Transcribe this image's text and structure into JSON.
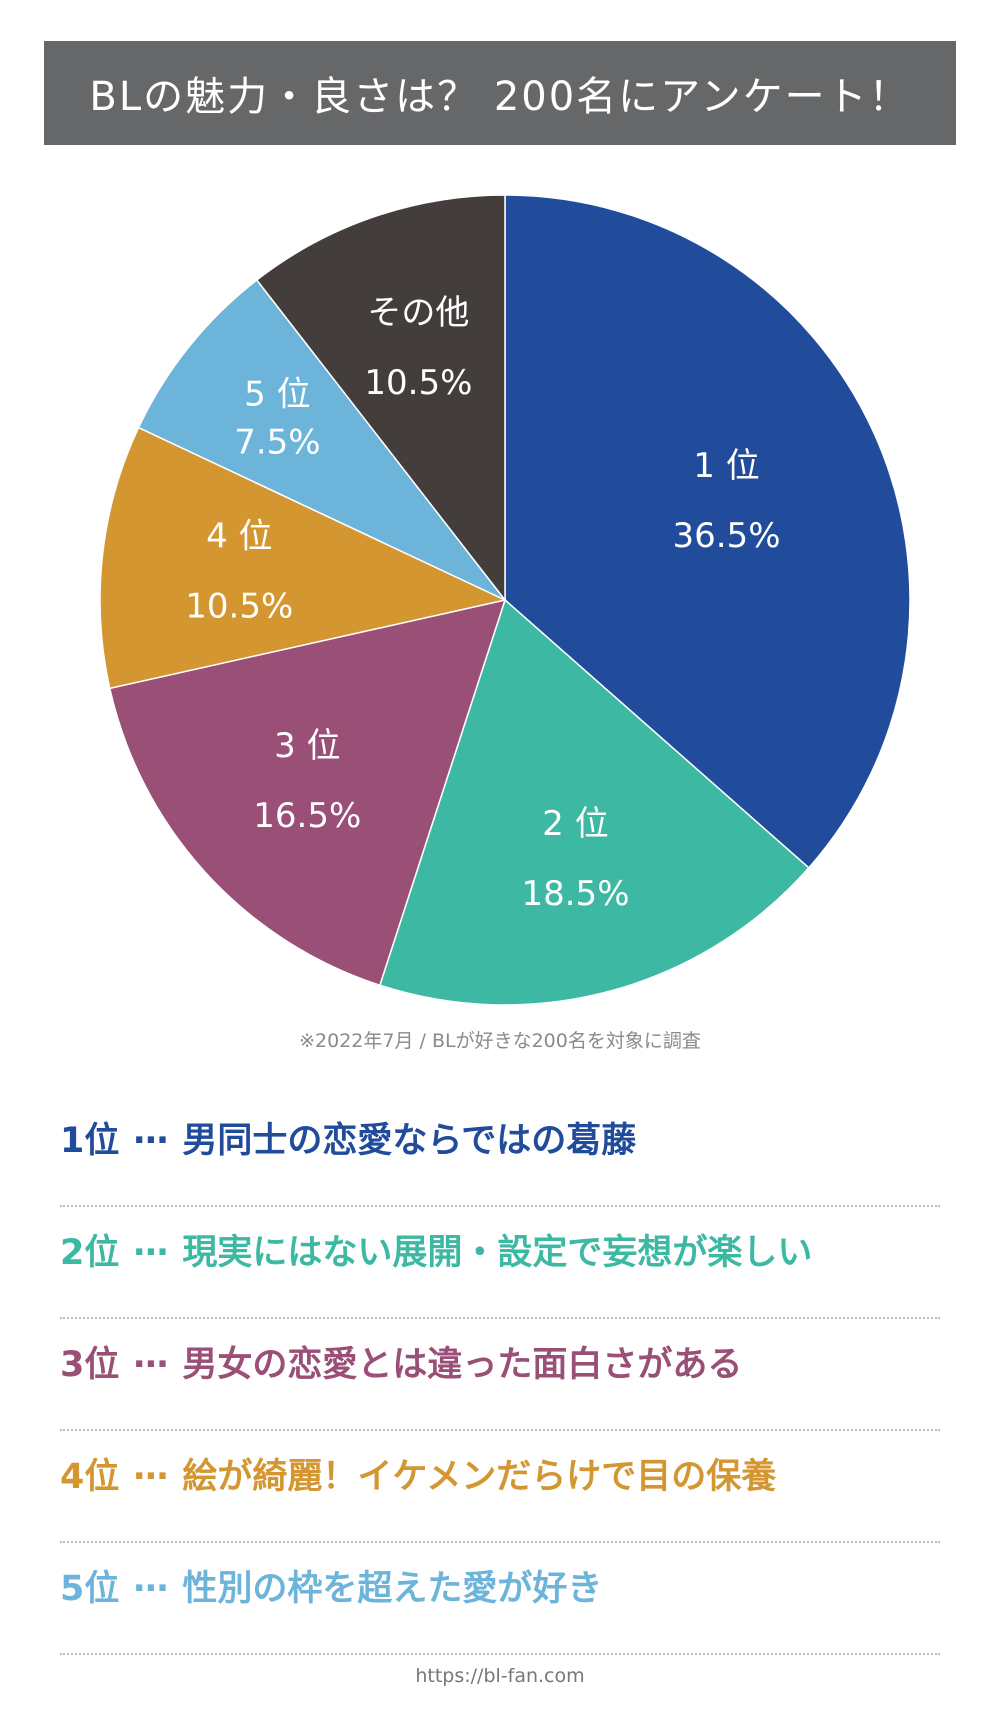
{
  "title": "BLの魅力・良さは？ 200名にアンケート！",
  "chart_data": {
    "type": "pie",
    "title": "BLの魅力・良さは？ 200名にアンケート！",
    "slices": [
      {
        "label": "1 位",
        "value": 36.5,
        "value_label": "36.5%",
        "color": "#214B9B"
      },
      {
        "label": "2 位",
        "value": 18.5,
        "value_label": "18.5%",
        "color": "#3DB8A3"
      },
      {
        "label": "3 位",
        "value": 16.5,
        "value_label": "16.5%",
        "color": "#9A4F77"
      },
      {
        "label": "4 位",
        "value": 10.5,
        "value_label": "10.5%",
        "color": "#D49631"
      },
      {
        "label": "5 位",
        "value": 7.5,
        "value_label": "7.5%",
        "color": "#6DB4DA"
      },
      {
        "label": "その他",
        "value": 10.5,
        "value_label": "10.5%",
        "color": "#433E3C"
      }
    ],
    "start": "12 o'clock",
    "direction": "clockwise"
  },
  "note": "※2022年7月 / BLが好きな200名を対象に調査",
  "separator": "…",
  "rankings": [
    {
      "rank": "1位",
      "text": "男同士の恋愛ならではの葛藤",
      "color": "#214B9B"
    },
    {
      "rank": "2位",
      "text": "現実にはない展開・設定で妄想が楽しい",
      "color": "#3DB8A3"
    },
    {
      "rank": "3位",
      "text": "男女の恋愛とは違った面白さがある",
      "color": "#9A4F77"
    },
    {
      "rank": "4位",
      "text": "絵が綺麗！イケメンだらけで目の保養",
      "color": "#D49631"
    },
    {
      "rank": "5位",
      "text": "性別の枠を超えた愛が好き",
      "color": "#6DB4DA"
    }
  ],
  "footer": "https://bl-fan.com"
}
